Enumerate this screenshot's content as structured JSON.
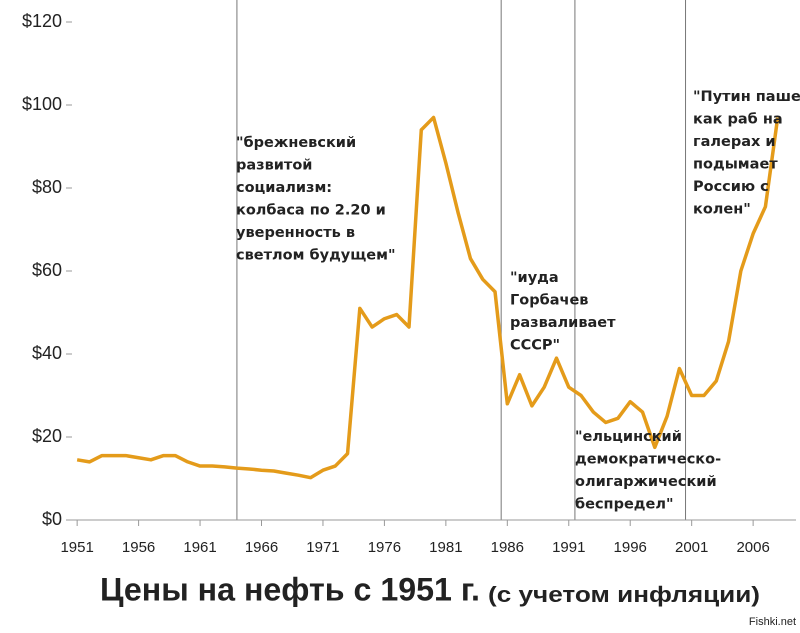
{
  "chart_data": {
    "type": "line",
    "title": "Цены на нефть с 1951 г.",
    "subtitle": "(с учетом инфляции)",
    "watermark": "Fishki.net",
    "x": [
      1951,
      1952,
      1953,
      1954,
      1955,
      1956,
      1957,
      1958,
      1959,
      1960,
      1961,
      1962,
      1963,
      1964,
      1965,
      1966,
      1967,
      1968,
      1969,
      1970,
      1971,
      1972,
      1973,
      1974,
      1975,
      1976,
      1977,
      1978,
      1979,
      1980,
      1981,
      1982,
      1983,
      1984,
      1985,
      1986,
      1987,
      1988,
      1989,
      1990,
      1991,
      1992,
      1993,
      1994,
      1995,
      1996,
      1997,
      1998,
      1999,
      2000,
      2001,
      2002,
      2003,
      2004,
      2005,
      2006,
      2007,
      2008
    ],
    "series": [
      {
        "name": "Oil price",
        "color": "#e49b1a",
        "values": [
          14.5,
          14,
          15.5,
          15.5,
          15.5,
          15,
          14.5,
          15.5,
          15.5,
          14,
          13,
          13,
          12.8,
          12.5,
          12.3,
          12,
          11.8,
          11.3,
          10.8,
          10.2,
          12,
          13,
          16,
          51,
          46.5,
          48.5,
          49.5,
          46.5,
          94,
          97,
          86,
          74,
          63,
          58,
          55,
          28,
          35,
          27.5,
          32,
          39,
          32,
          30,
          26,
          23.5,
          24.5,
          28.5,
          26,
          17.5,
          25,
          36.5,
          30,
          30,
          33.5,
          43,
          60,
          69,
          75.5,
          97
        ]
      }
    ],
    "xlim": [
      1950.5,
      2009
    ],
    "xticks": [
      1951,
      1956,
      1961,
      1966,
      1971,
      1976,
      1981,
      1986,
      1991,
      1996,
      2001,
      2006
    ],
    "ylim": [
      0,
      120
    ],
    "yticks": [
      {
        "value": 0,
        "label": "$0"
      },
      {
        "value": 20,
        "label": "$20"
      },
      {
        "value": 40,
        "label": "$40"
      },
      {
        "value": 60,
        "label": "$60"
      },
      {
        "value": 80,
        "label": "$80"
      },
      {
        "value": 100,
        "label": "$100"
      },
      {
        "value": 120,
        "label": "$120"
      }
    ],
    "vlines": [
      1964,
      1985.5,
      1991.5,
      2000.5
    ],
    "annotations": [
      [
        "\"брежневский",
        "развитой",
        "социализм:",
        "колбаса по 2.20 и",
        "уверенность в",
        "светлом будущем\""
      ],
      [
        "\"иуда",
        "Горбачев",
        "разваливает",
        "СССР\""
      ],
      [
        "\"ельцинский",
        "демократическо-",
        "олигаржический",
        "беспредел\""
      ],
      [
        "\"Путин пашет",
        "как раб на",
        "галерах и",
        "подымает",
        "Россию с",
        "колен\""
      ]
    ]
  }
}
